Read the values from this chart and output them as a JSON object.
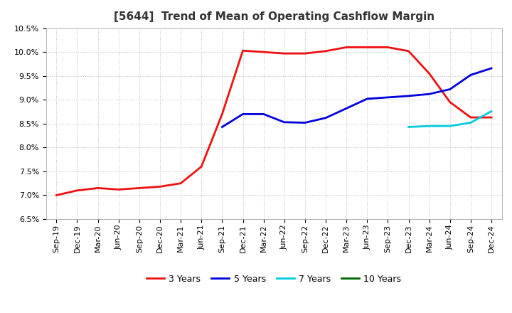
{
  "title": "[5644]  Trend of Mean of Operating Cashflow Margin",
  "ylim": [
    0.065,
    0.105
  ],
  "yticks": [
    0.065,
    0.07,
    0.075,
    0.08,
    0.085,
    0.09,
    0.095,
    0.1,
    0.105
  ],
  "x_labels": [
    "Sep-19",
    "Dec-19",
    "Mar-20",
    "Jun-20",
    "Sep-20",
    "Dec-20",
    "Mar-21",
    "Jun-21",
    "Sep-21",
    "Dec-21",
    "Mar-22",
    "Jun-22",
    "Sep-22",
    "Dec-22",
    "Mar-23",
    "Jun-23",
    "Sep-23",
    "Dec-23",
    "Mar-24",
    "Jun-24",
    "Sep-24",
    "Dec-24"
  ],
  "series_3y": {
    "label": "3 Years",
    "color": "#EE1111",
    "data": [
      0.07,
      0.071,
      0.0715,
      0.0712,
      0.0715,
      0.0718,
      0.0725,
      0.076,
      0.087,
      0.1003,
      0.1,
      0.0997,
      0.0997,
      0.1002,
      0.101,
      0.101,
      0.101,
      0.1002,
      0.0955,
      0.0895,
      0.0863,
      0.0863
    ]
  },
  "series_5y": {
    "label": "5 Years",
    "color": "#0000DD",
    "data": [
      null,
      null,
      null,
      null,
      null,
      null,
      null,
      null,
      0.0843,
      0.087,
      0.087,
      0.0853,
      0.0852,
      0.0862,
      0.0882,
      0.0902,
      0.0905,
      0.0908,
      0.0912,
      0.0922,
      0.0952,
      0.0966
    ]
  },
  "series_7y": {
    "label": "7 Years",
    "color": "#00CCDD",
    "data": [
      null,
      null,
      null,
      null,
      null,
      null,
      null,
      null,
      null,
      null,
      null,
      null,
      null,
      null,
      null,
      null,
      null,
      0.0843,
      0.0845,
      0.0845,
      0.0852,
      0.0876
    ]
  },
  "series_10y": {
    "label": "10 Years",
    "color": "#006600",
    "data": [
      null,
      null,
      null,
      null,
      null,
      null,
      null,
      null,
      null,
      null,
      null,
      null,
      null,
      null,
      null,
      null,
      null,
      null,
      null,
      null,
      null,
      null
    ]
  },
  "background_color": "#ffffff",
  "plot_bg_color": "#ffffff",
  "grid_color": "#bbbbbb",
  "title_fontsize": 11,
  "legend_fontsize": 9,
  "tick_fontsize": 8
}
